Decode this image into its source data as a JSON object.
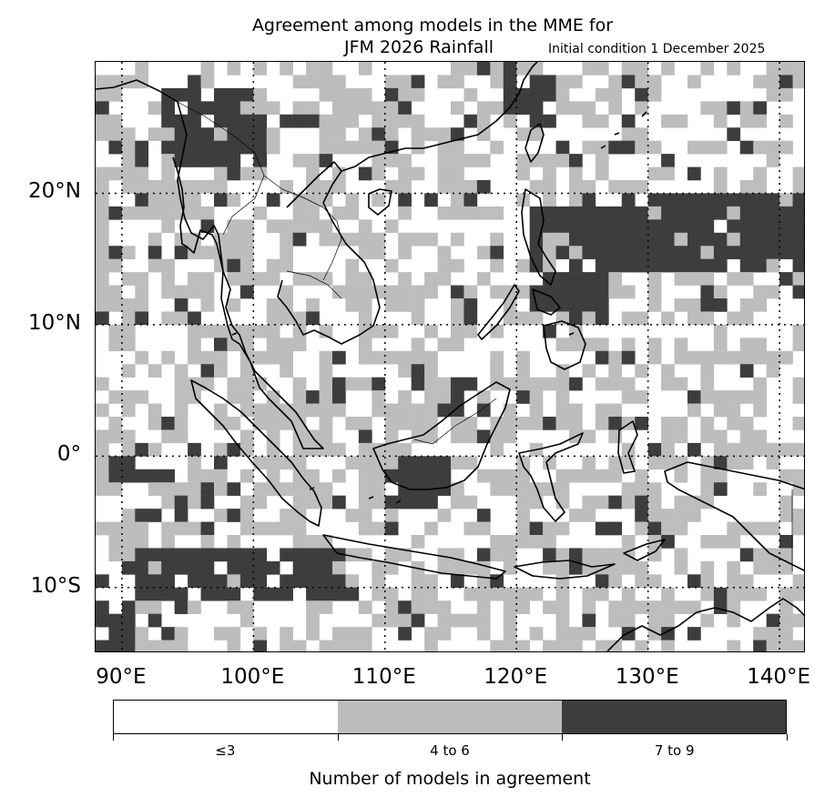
{
  "title": "Agreement among models in the MME for",
  "subtitle": "JFM 2026  Rainfall",
  "initial_condition": "Initial condition 1 December 2025",
  "colorbar": {
    "label": "Number of models in agreement",
    "categories": [
      {
        "label": "≤3",
        "color": "#ffffff"
      },
      {
        "label": "4 to 6",
        "color": "#bdbdbd"
      },
      {
        "label": "7 to 9",
        "color": "#3d3d3d"
      }
    ]
  },
  "axes": {
    "lon_ticks": [
      "90°E",
      "100°E",
      "110°E",
      "120°E",
      "130°E",
      "140°E"
    ],
    "lat_ticks": [
      "20°N",
      "10°N",
      "0°",
      "10°S"
    ],
    "lon_range": [
      88,
      142
    ],
    "lat_range": [
      -15,
      30
    ],
    "gridlines": "dotted"
  },
  "chart_data": {
    "type": "heatmap",
    "description_units": "grid cells of model agreement (0 = ≤3, 1 = 4 to 6, 2 = 7 to 9)",
    "regions": [
      {
        "name_hint": "dark",
        "lon": [
          127,
          142
        ],
        "lat": [
          14,
          20
        ],
        "level": 2
      },
      {
        "name_hint": "dark",
        "lon": [
          91,
          107
        ],
        "lat": [
          -11,
          -7
        ],
        "level": 2
      },
      {
        "name_hint": "dark",
        "lon": [
          88,
          94
        ],
        "lat": [
          -2,
          0
        ],
        "level": 2
      },
      {
        "name_hint": "dark",
        "lon": [
          93,
          101
        ],
        "lat": [
          22,
          28
        ],
        "level": 2
      },
      {
        "name_hint": "dark",
        "lon": [
          121,
          127
        ],
        "lat": [
          11,
          19
        ],
        "level": 2
      },
      {
        "name_hint": "dark",
        "lon": [
          119,
          123
        ],
        "lat": [
          25,
          29
        ],
        "level": 2
      },
      {
        "name_hint": "dark",
        "lon": [
          110,
          115
        ],
        "lat": [
          -4,
          0
        ],
        "level": 2
      },
      {
        "name_hint": "dark",
        "lon": [
          88,
          91
        ],
        "lat": [
          -15,
          -11
        ],
        "level": 2
      }
    ]
  }
}
